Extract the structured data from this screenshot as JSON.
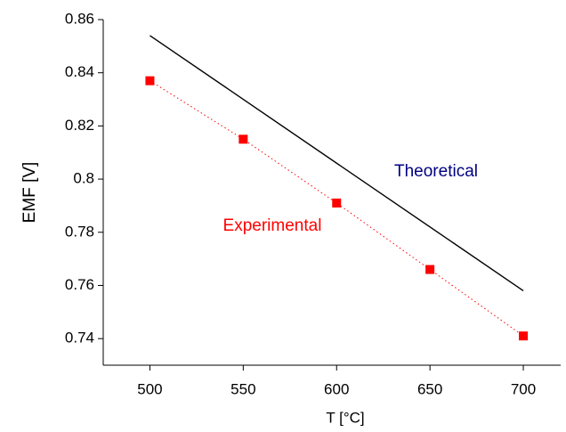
{
  "chart_data": {
    "type": "line",
    "x_label": "T [°C]",
    "y_label": "EMF [V]",
    "xlim": [
      475,
      720
    ],
    "xticks": [
      500,
      550,
      600,
      650,
      700
    ],
    "ylim": [
      0.73,
      0.86
    ],
    "yticks": [
      0.74,
      0.76,
      0.78,
      0.8,
      0.82,
      0.84,
      0.86
    ],
    "series": [
      {
        "name": "Theoretical",
        "color": "#000080",
        "line_color": "#000000",
        "style": "solid",
        "x": [
          500,
          700
        ],
        "values": [
          0.854,
          0.758
        ]
      },
      {
        "name": "Experimental",
        "color": "#ff0000",
        "line_color": "#ff0000",
        "style": "dotted",
        "markers": true,
        "x": [
          500,
          550,
          600,
          650,
          700
        ],
        "values": [
          0.837,
          0.815,
          0.791,
          0.766,
          0.741
        ]
      }
    ]
  }
}
